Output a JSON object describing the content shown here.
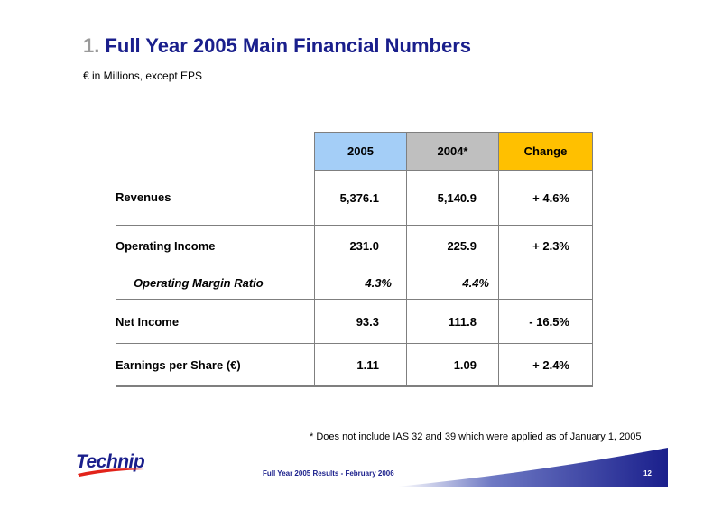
{
  "header": {
    "title_number": "1.",
    "title_text": "Full Year 2005 Main Financial Numbers",
    "subtitle": "€ in Millions, except EPS"
  },
  "table": {
    "columns": [
      "2005",
      "2004*",
      "Change"
    ],
    "column_colors": [
      "#a4cef7",
      "#bfbfbf",
      "#ffc000"
    ],
    "rows": [
      {
        "label": "Revenues",
        "v2005": "5,376.1",
        "v2004": "5,140.9",
        "change": "+ 4.6%"
      },
      {
        "label": "Operating Income",
        "v2005": "231.0",
        "v2004": "225.9",
        "change": "+ 2.3%"
      },
      {
        "label": "Operating Margin Ratio",
        "v2005": "4.3%",
        "v2004": "4.4%",
        "change": ""
      },
      {
        "label": "Net Income",
        "v2005": "93.3",
        "v2004": "111.8",
        "change": "- 16.5%"
      },
      {
        "label": "Earnings per Share (€)",
        "v2005": "1.11",
        "v2004": "1.09",
        "change": "+ 2.4%"
      }
    ]
  },
  "footnote": "* Does not include IAS 32 and 39 which were applied as of January 1, 2005",
  "footer": {
    "logo_text": "Technip",
    "text": "Full Year 2005 Results  -  February 2006",
    "page_number": "12",
    "brand_color": "#1a1f8c"
  }
}
